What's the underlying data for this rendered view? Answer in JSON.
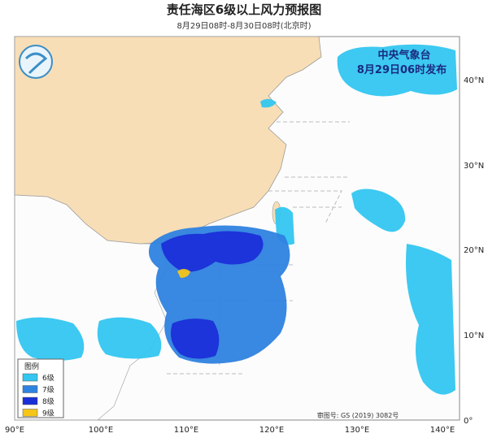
{
  "header": {
    "title": "责任海区6级以上风力预报图",
    "subtitle": "8月29日08时-8月30日08时(北京时)"
  },
  "stamp": {
    "agency": "中央气象台",
    "issued": "8月29日06时发布"
  },
  "legend": {
    "title": "图例",
    "items": [
      {
        "label": "6级",
        "color": "#33c6f0"
      },
      {
        "label": "7级",
        "color": "#2e82e0"
      },
      {
        "label": "8级",
        "color": "#1a2fd8"
      },
      {
        "label": "9级",
        "color": "#f5c518"
      }
    ]
  },
  "axes": {
    "lon": [
      "90°E",
      "100°E",
      "110°E",
      "120°E",
      "130°E",
      "140°E"
    ],
    "lat": [
      "0°",
      "10°N",
      "20°N",
      "30°N",
      "40°N"
    ]
  },
  "approval": "审图号: GS (2019) 3082号"
}
